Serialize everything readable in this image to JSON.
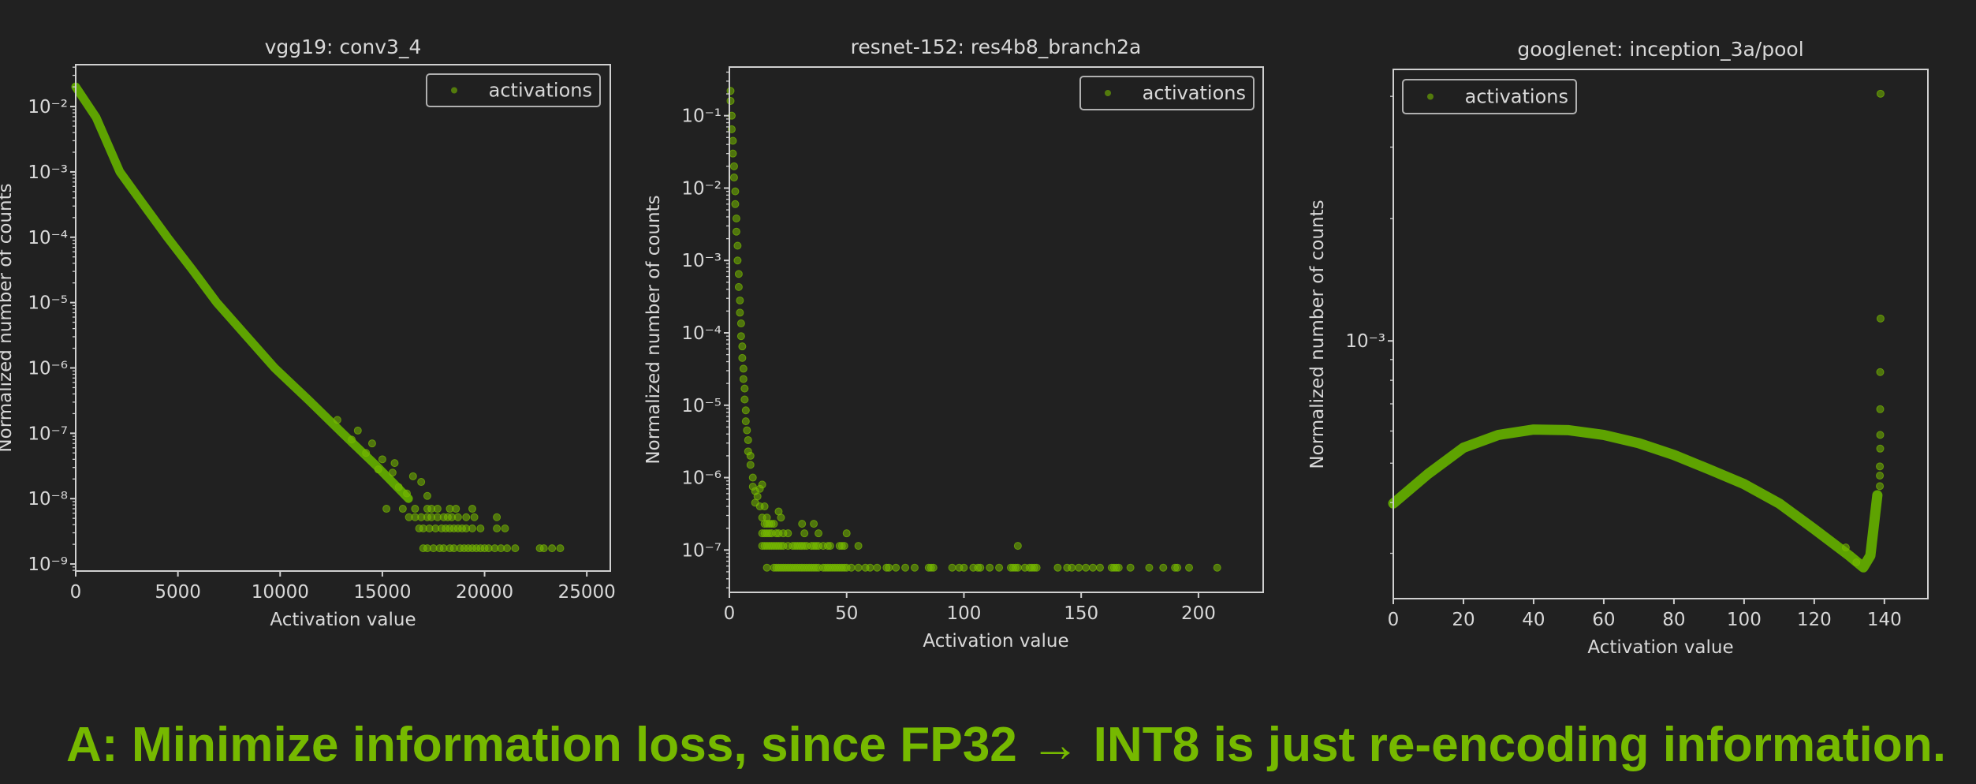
{
  "caption": "A: Minimize information loss, since FP32 → INT8 is just re-encoding information.",
  "colors": {
    "background": "#212121",
    "points": "#76b900",
    "band": "#62ab00",
    "axes": "#d0d0d0",
    "caption": "#76b900"
  },
  "chart_data": [
    {
      "type": "scatter",
      "title": "vgg19: conv3_4",
      "xlabel": "Activation value",
      "ylabel": "Normalized number of counts",
      "xlim": [
        0,
        26150
      ],
      "ylim": [
        7.8e-10,
        0.0437
      ],
      "yscale": "log",
      "grid": false,
      "xticks": [
        0,
        5000,
        10000,
        15000,
        20000,
        25000
      ],
      "xtick_labels": [
        "0",
        "5000",
        "10000",
        "15000",
        "20000",
        "25000"
      ],
      "yticks": [
        0.01,
        0.001,
        0.0001,
        1e-05,
        1e-06,
        1e-07,
        1e-08,
        1e-09
      ],
      "ytick_labels": [
        "10⁻²",
        "10⁻³",
        "10⁻⁴",
        "10⁻⁵",
        "10⁻⁶",
        "10⁻⁷",
        "10⁻⁸",
        "10⁻⁹"
      ],
      "legend": {
        "label": "activations",
        "loc": "upper right"
      },
      "series": [
        {
          "name": "activations",
          "trend": [
            [
              0,
              0.02
            ],
            [
              1000,
              0.0068
            ],
            [
              2160,
              0.001
            ],
            [
              3300,
              0.00032
            ],
            [
              4480,
              0.0001
            ],
            [
              5700,
              3.2e-05
            ],
            [
              6900,
              1e-05
            ],
            [
              8300,
              3.2e-06
            ],
            [
              9730,
              1e-06
            ],
            [
              11400,
              3.2e-07
            ],
            [
              13050,
              1e-07
            ],
            [
              14700,
              3.2e-08
            ],
            [
              16280,
              1e-08
            ]
          ],
          "points": [
            [
              12800,
              1.6e-07
            ],
            [
              13500,
              8e-08
            ],
            [
              13800,
              1.1e-07
            ],
            [
              14200,
              5e-08
            ],
            [
              14500,
              7e-08
            ],
            [
              14800,
              2.8e-08
            ],
            [
              15000,
              4e-08
            ],
            [
              15500,
              2.5e-08
            ],
            [
              15600,
              3.5e-08
            ],
            [
              15800,
              1.5e-08
            ],
            [
              16200,
              1.2e-08
            ],
            [
              16500,
              2.2e-08
            ],
            [
              16900,
              1.8e-08
            ],
            [
              17200,
              1.1e-08
            ]
          ],
          "levels": [
            {
              "y": 7e-09,
              "x": [
                15200,
                16000,
                16600,
                17200,
                17400,
                17700,
                18300,
                18600,
                19400
              ]
            },
            {
              "y": 5.2e-09,
              "x": [
                16300,
                16600,
                16900,
                17200,
                17400,
                17700,
                18000,
                18200,
                18400,
                18700,
                19100,
                19500,
                20600
              ]
            },
            {
              "y": 3.5e-09,
              "x": [
                16800,
                17000,
                17300,
                17600,
                17900,
                18100,
                18300,
                18500,
                18700,
                18900,
                19100,
                19400,
                19800,
                20600,
                21000
              ]
            },
            {
              "y": 1.74e-09,
              "x": [
                17000,
                17200,
                17500,
                17800,
                18000,
                18300,
                18500,
                18800,
                19000,
                19200,
                19400,
                19600,
                19800,
                20000,
                20200,
                20500,
                20800,
                21100,
                21500,
                22700,
                22900,
                23300,
                23700
              ]
            }
          ]
        }
      ]
    },
    {
      "type": "scatter",
      "title": "resnet-152: res4b8_branch2a",
      "xlabel": "Activation value",
      "ylabel": "Normalized number of counts",
      "xlim": [
        0,
        227.6
      ],
      "ylim": [
        2.6e-08,
        0.47
      ],
      "yscale": "log",
      "grid": false,
      "xticks": [
        0,
        50,
        100,
        150,
        200
      ],
      "xtick_labels": [
        "0",
        "50",
        "100",
        "150",
        "200"
      ],
      "yticks": [
        0.1,
        0.01,
        0.001,
        0.0001,
        1e-05,
        1e-06,
        1e-07
      ],
      "ytick_labels": [
        "10⁻¹",
        "10⁻²",
        "10⁻³",
        "10⁻⁴",
        "10⁻⁵",
        "10⁻⁶",
        "10⁻⁷"
      ],
      "legend": {
        "label": "activations",
        "loc": "upper right"
      },
      "series": [
        {
          "name": "activations",
          "points": [
            [
              0.5,
              0.22
            ],
            [
              0.5,
              0.16
            ],
            [
              1,
              0.1
            ],
            [
              1,
              0.065
            ],
            [
              1.5,
              0.045
            ],
            [
              1.5,
              0.03
            ],
            [
              2,
              0.02
            ],
            [
              2,
              0.014
            ],
            [
              2.5,
              0.009
            ],
            [
              2.5,
              0.006
            ],
            [
              3,
              0.0038
            ],
            [
              3,
              0.0025
            ],
            [
              3.5,
              0.0016
            ],
            [
              3.5,
              0.001
            ],
            [
              4,
              0.00065
            ],
            [
              4,
              0.00043
            ],
            [
              4.5,
              0.00028
            ],
            [
              4.5,
              0.00019
            ],
            [
              5,
              0.000135
            ],
            [
              5,
              9e-05
            ],
            [
              5.5,
              6.5e-05
            ],
            [
              5.5,
              4.5e-05
            ],
            [
              6,
              3.2e-05
            ],
            [
              6,
              2.3e-05
            ],
            [
              6.5,
              1.7e-05
            ],
            [
              6.5,
              1.2e-05
            ],
            [
              7,
              8.5e-06
            ],
            [
              7,
              6e-06
            ],
            [
              7.5,
              4.5e-06
            ],
            [
              8,
              3.3e-06
            ],
            [
              8,
              2.3e-06
            ],
            [
              9,
              2e-06
            ],
            [
              9,
              1.5e-06
            ],
            [
              10,
              1e-06
            ],
            [
              10,
              7.5e-07
            ],
            [
              11,
              6.5e-07
            ],
            [
              12,
              5.5e-07
            ],
            [
              13,
              7e-07
            ],
            [
              14,
              8e-07
            ],
            [
              11,
              4.5e-07
            ],
            [
              13,
              4e-07
            ],
            [
              15,
              4e-07
            ],
            [
              14,
              2.8e-07
            ],
            [
              16,
              2.8e-07
            ],
            [
              21,
              3.4e-07
            ],
            [
              22,
              2.8e-07
            ]
          ],
          "levels": [
            {
              "y": 2.3e-07,
              "x": [
                15,
                16,
                17,
                18,
                19,
                31,
                36
              ]
            },
            {
              "y": 1.7e-07,
              "x": [
                14,
                15,
                16,
                17,
                18,
                20,
                21,
                23,
                25,
                32,
                38,
                50
              ]
            },
            {
              "y": 1.14e-07,
              "x": [
                14,
                15,
                16,
                17,
                18,
                19,
                20,
                21,
                22,
                23,
                25,
                27,
                28,
                29,
                30,
                31,
                32,
                33,
                35,
                36,
                37,
                38,
                40,
                42,
                43,
                47,
                48,
                49,
                55,
                123
              ]
            },
            {
              "y": 5.7e-08,
              "x": [
                16,
                19,
                20,
                21,
                22,
                23,
                24,
                25,
                26,
                27,
                28,
                29,
                30,
                31,
                32,
                33,
                34,
                35,
                36,
                37,
                38,
                40,
                41,
                42,
                43,
                44,
                45,
                46,
                47,
                48,
                49,
                50,
                52,
                55,
                58,
                60,
                63,
                67,
                68,
                71,
                75,
                79,
                85,
                86,
                87,
                95,
                98,
                100,
                104,
                106,
                107,
                111,
                115,
                120,
                121,
                122,
                123,
                126,
                128,
                129,
                130,
                131,
                140,
                144,
                146,
                149,
                152,
                155,
                158,
                163,
                164,
                165,
                166,
                171,
                179,
                185,
                190,
                191,
                196,
                208
              ]
            }
          ]
        }
      ]
    },
    {
      "type": "scatter",
      "title": "googlenet: inception_3a/pool",
      "xlabel": "Activation value",
      "ylabel": "Normalized number of counts",
      "xlim": [
        0,
        152.4
      ],
      "ylim": [
        0.000232,
        0.00466
      ],
      "yscale": "log",
      "grid": false,
      "xticks": [
        0,
        20,
        40,
        60,
        80,
        100,
        120,
        140
      ],
      "xtick_labels": [
        "0",
        "20",
        "40",
        "60",
        "80",
        "100",
        "120",
        "140"
      ],
      "yticks": [
        0.001
      ],
      "ytick_labels": [
        "10⁻³"
      ],
      "legend": {
        "label": "activations",
        "loc": "upper left"
      },
      "series": [
        {
          "name": "activations",
          "trend": [
            [
              0,
              0.000398
            ],
            [
              10,
              0.000471
            ],
            [
              20,
              0.000546
            ],
            [
              30,
              0.000587
            ],
            [
              40,
              0.000605
            ],
            [
              50,
              0.000603
            ],
            [
              60,
              0.000587
            ],
            [
              70,
              0.00056
            ],
            [
              80,
              0.000524
            ],
            [
              90,
              0.000483
            ],
            [
              100,
              0.000444
            ],
            [
              110,
              0.000398
            ],
            [
              120,
              0.000344
            ],
            [
              130,
              0.000296
            ],
            [
              134,
              0.000277
            ],
            [
              136,
              0.000296
            ],
            [
              137,
              0.000352
            ],
            [
              138,
              0.000417
            ]
          ],
          "points": [
            [
              138.7,
              0.000439
            ],
            [
              138.7,
              0.000466
            ],
            [
              138.7,
              0.000491
            ],
            [
              138.8,
              0.000543
            ],
            [
              138.8,
              0.000587
            ],
            [
              138.8,
              0.000679
            ],
            [
              138.8,
              0.000838
            ],
            [
              138.9,
              0.001135
            ],
            [
              138.9,
              0.00406
            ],
            [
              132,
              0.000285
            ],
            [
              129,
              0.00031
            ]
          ]
        }
      ]
    }
  ]
}
